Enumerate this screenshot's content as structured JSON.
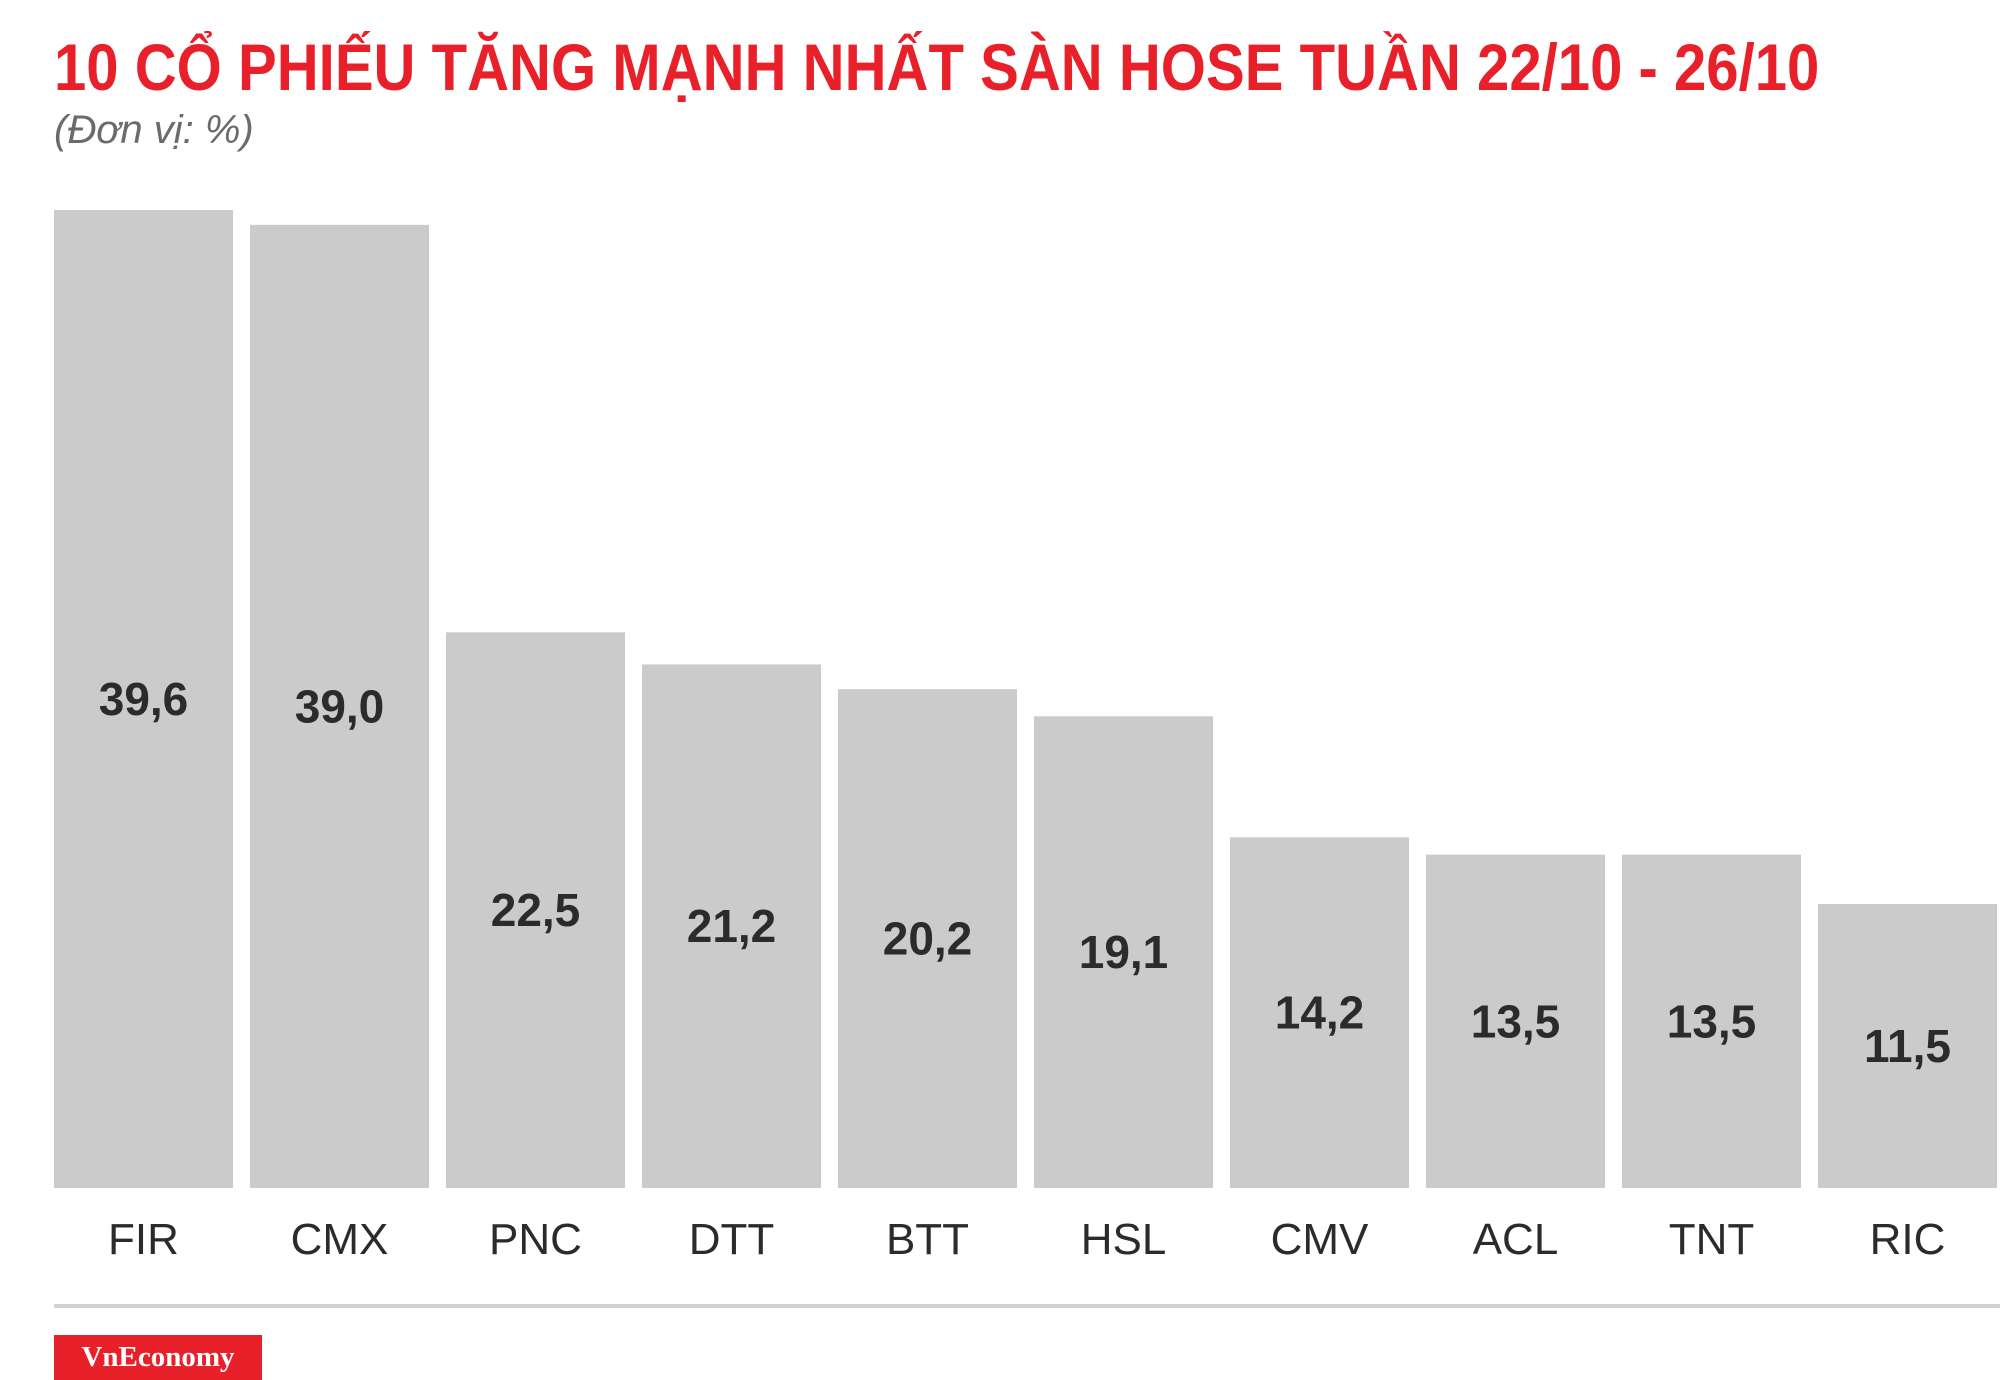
{
  "title": "10 CỔ PHIẾU TĂNG MẠNH NHẤT SÀN HOSE TUẦN 22/10 - 26/10",
  "subtitle": "(Đơn vị: %)",
  "brand": "VnEconomy",
  "colors": {
    "title": "#e8202a",
    "bar": "#cccbcc",
    "value_label": "#2b2b2b",
    "category_label": "#2b2b2b",
    "divider": "#d3d2d2",
    "brand_bg": "#e8202a"
  },
  "chart_data": {
    "type": "bar",
    "title": "10 CỔ PHIẾU TĂNG MẠNH NHẤT SÀN HOSE TUẦN 22/10 - 26/10",
    "subtitle": "(Đơn vị: %)",
    "categories": [
      "FIR",
      "CMX",
      "PNC",
      "DTT",
      "BTT",
      "HSL",
      "CMV",
      "ACL",
      "TNT",
      "RIC"
    ],
    "values": [
      39.6,
      39.0,
      22.5,
      21.2,
      20.2,
      19.1,
      14.2,
      13.5,
      13.5,
      11.5
    ],
    "value_labels": [
      "39,6",
      "39,0",
      "22,5",
      "21,2",
      "20,2",
      "19,1",
      "14,2",
      "13,5",
      "13,5",
      "11,5"
    ],
    "xlabel": "",
    "ylabel": "",
    "ylim": [
      0,
      39.6
    ],
    "grid": false,
    "legend": "none",
    "data_labels": "inside-bar"
  }
}
